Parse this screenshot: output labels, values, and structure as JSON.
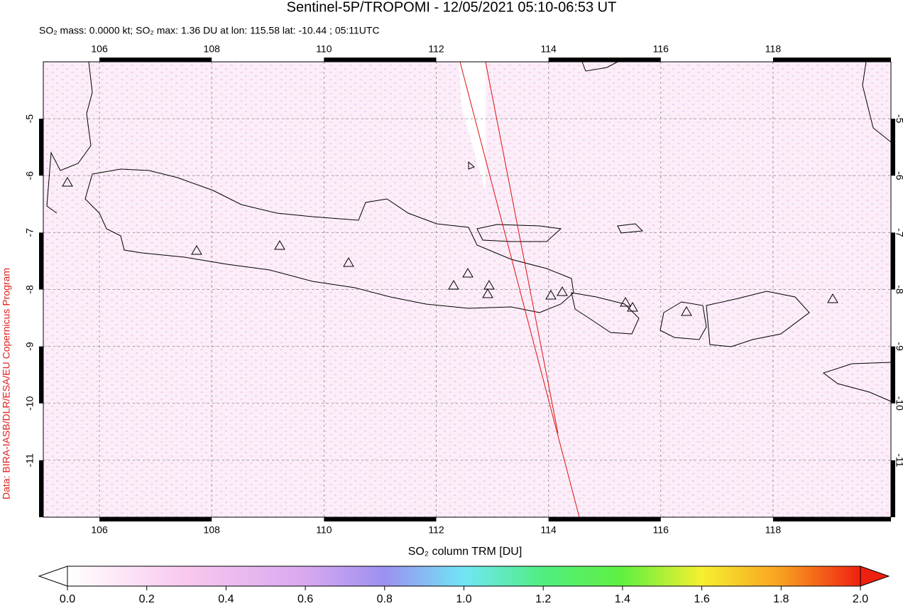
{
  "title": "Sentinel-5P/TROPOMI - 12/05/2021 05:10-06:53 UT",
  "subtitle": "SO₂ mass: 0.0000 kt; SO₂ max: 1.36 DU at lon: 115.58 lat: -10.44 ; 05:11UTC",
  "credit": "Data: BIRA-IASB/DLR/ESA/EU Copernicus Program",
  "map": {
    "xlim": [
      105,
      120.1
    ],
    "ylim": [
      -12,
      -4
    ],
    "xticks": [
      106,
      108,
      110,
      112,
      114,
      116,
      118
    ],
    "yticks": [
      -5,
      -6,
      -7,
      -8,
      -9,
      -10,
      -11
    ]
  },
  "colorbar": {
    "label": "SO₂ column TRM [DU]",
    "lim": [
      0,
      2
    ],
    "ticks": [
      {
        "value": 0,
        "label": "0.0"
      },
      {
        "value": 0.2,
        "label": "0.2"
      },
      {
        "value": 0.4,
        "label": "0.4"
      },
      {
        "value": 0.6,
        "label": "0.6"
      },
      {
        "value": 0.8,
        "label": "0.8"
      },
      {
        "value": 1,
        "label": "1.0"
      },
      {
        "value": 1.2,
        "label": "1.2"
      },
      {
        "value": 1.4,
        "label": "1.4"
      },
      {
        "value": 1.6,
        "label": "1.6"
      },
      {
        "value": 1.8,
        "label": "1.8"
      },
      {
        "value": 2,
        "label": "2.0"
      }
    ]
  }
}
